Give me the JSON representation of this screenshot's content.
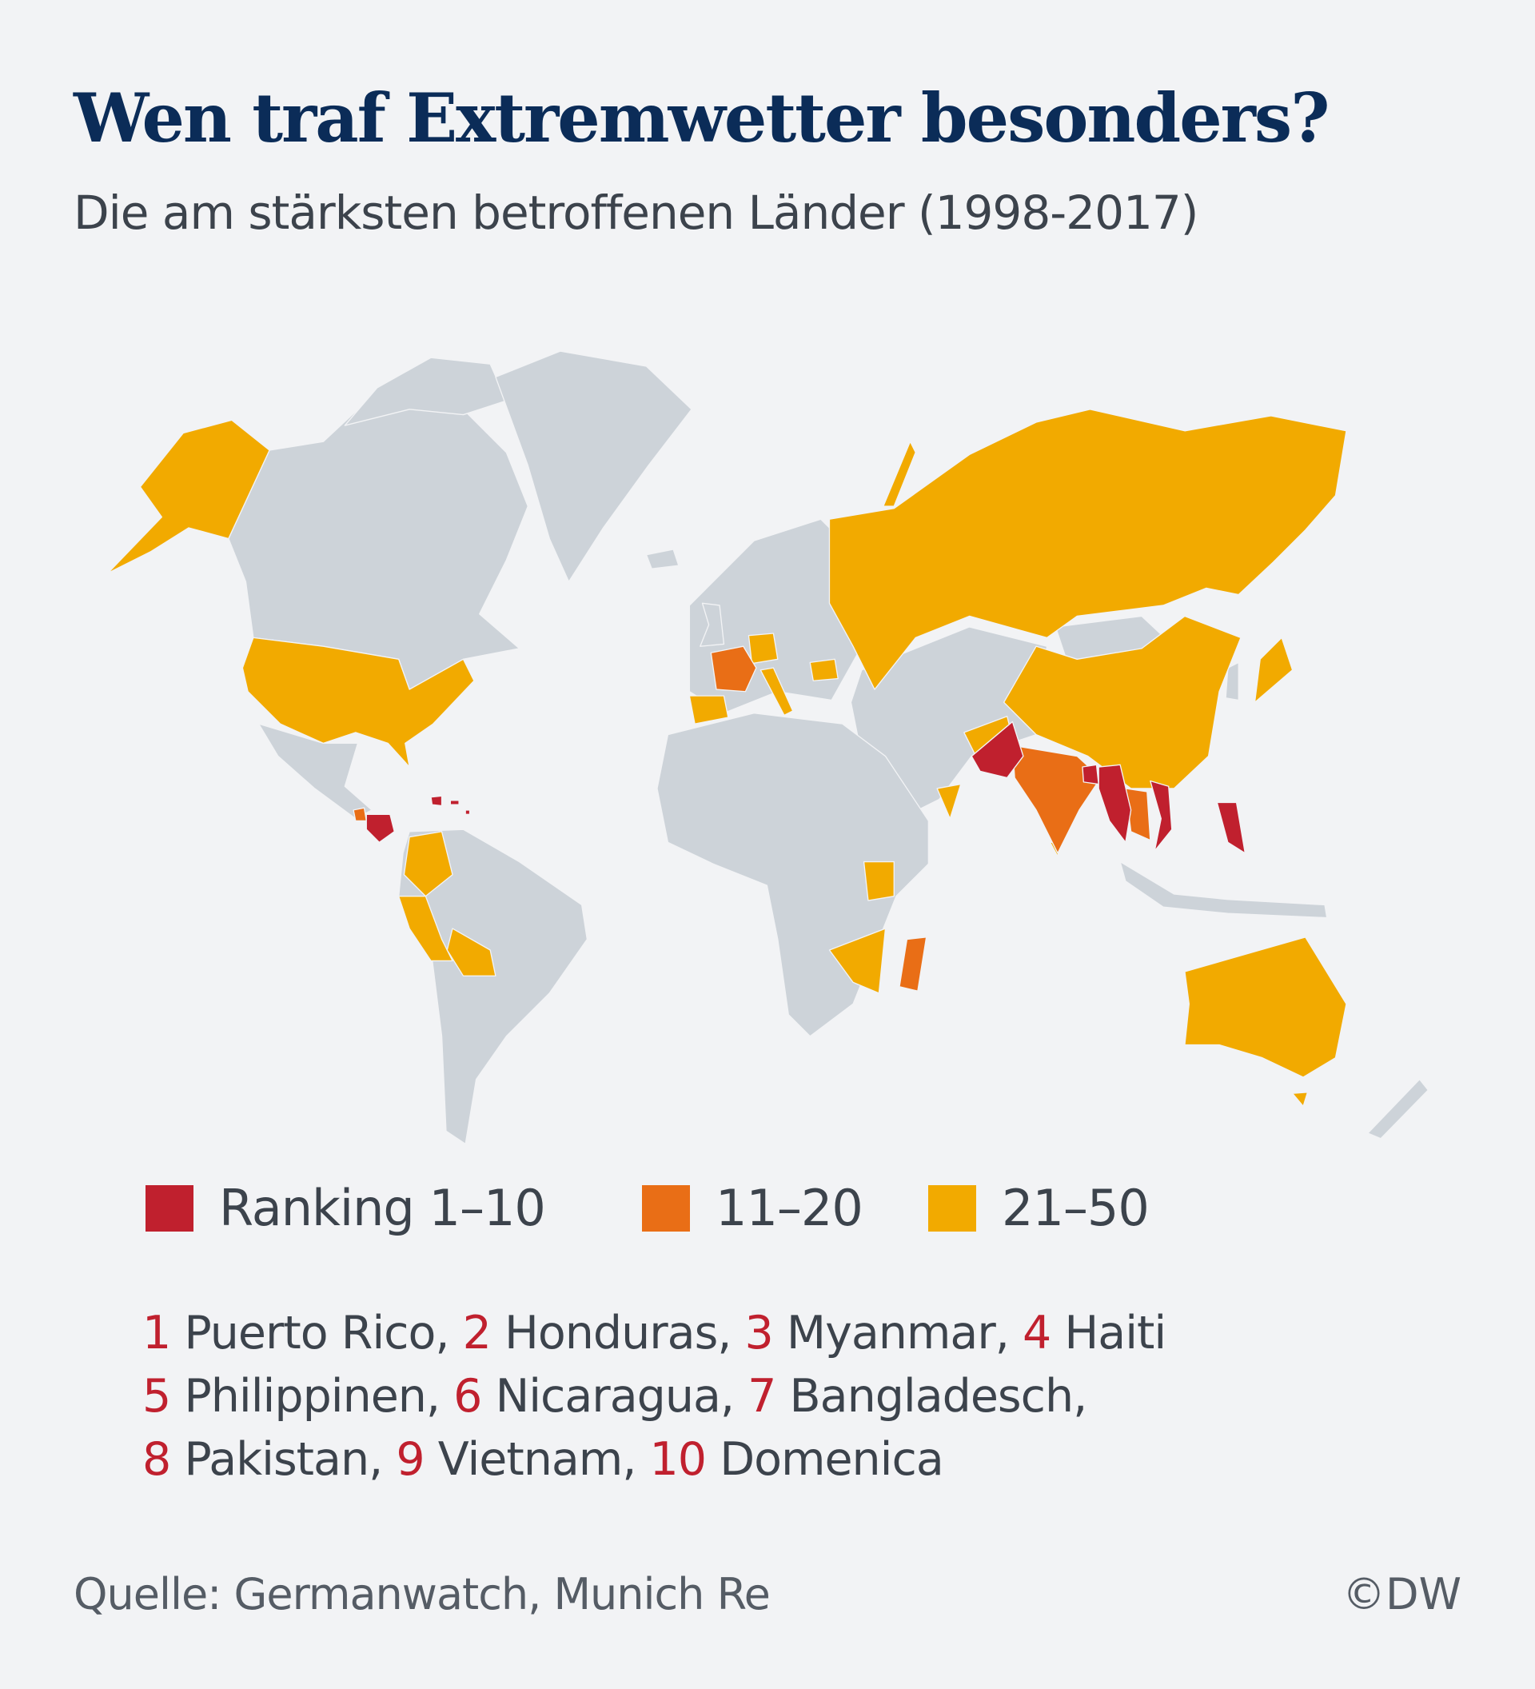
{
  "header": {
    "title": "Wen traf Extremwetter besonders?",
    "subtitle": "Die am stärksten betroffenen Länder (1998-2017)"
  },
  "colors": {
    "background": "#f2f3f5",
    "land": "#cdd3d9",
    "rank_1_10": "#c0202e",
    "rank_11_20": "#e96e16",
    "rank_21_50": "#f2aa00",
    "title": "#0b2c58"
  },
  "legend": {
    "items": [
      {
        "label": "Ranking 1–10",
        "color": "#c0202e"
      },
      {
        "label": "11–20",
        "color": "#e96e16"
      },
      {
        "label": "21–50",
        "color": "#f2aa00"
      }
    ]
  },
  "ranking": {
    "lines": [
      [
        {
          "rank": "1",
          "name": "Puerto Rico,"
        },
        {
          "rank": "2",
          "name": "Honduras,"
        },
        {
          "rank": "3",
          "name": "Myanmar,"
        },
        {
          "rank": "4",
          "name": "Haiti"
        }
      ],
      [
        {
          "rank": "5",
          "name": "Philippinen,"
        },
        {
          "rank": "6",
          "name": "Nicaragua,"
        },
        {
          "rank": "7",
          "name": "Bangladesch,"
        }
      ],
      [
        {
          "rank": "8",
          "name": "Pakistan,"
        },
        {
          "rank": "9",
          "name": "Vietnam,"
        },
        {
          "rank": "10",
          "name": "Domenica"
        }
      ]
    ]
  },
  "footer": {
    "source": "Quelle: Germanwatch, Munich Re",
    "copyright": "©DW"
  }
}
